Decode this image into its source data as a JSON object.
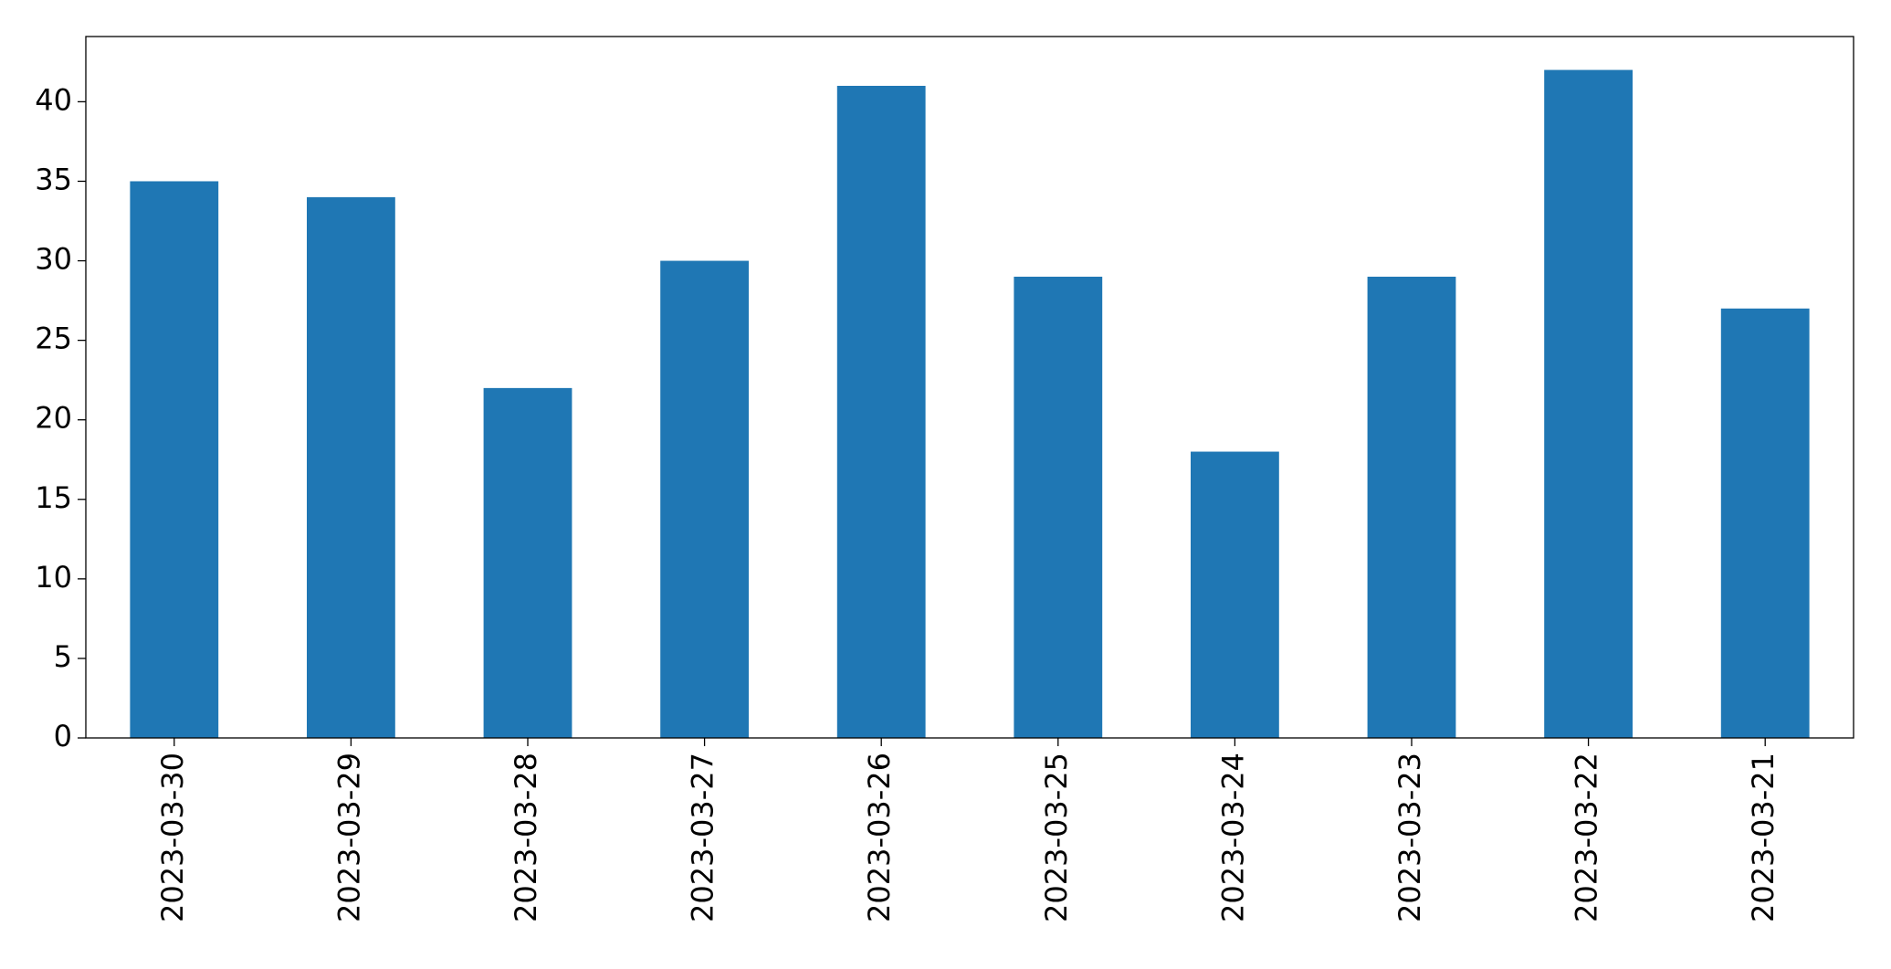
{
  "chart_data": {
    "type": "bar",
    "categories": [
      "2023-03-30",
      "2023-03-29",
      "2023-03-28",
      "2023-03-27",
      "2023-03-26",
      "2023-03-25",
      "2023-03-24",
      "2023-03-23",
      "2023-03-22",
      "2023-03-21"
    ],
    "values": [
      35,
      34,
      22,
      30,
      41,
      29,
      18,
      29,
      42,
      27
    ],
    "color": "#1f77b4",
    "ylim": [
      0,
      44.1
    ],
    "yticks": [
      0,
      5,
      10,
      15,
      20,
      25,
      30,
      35,
      40
    ],
    "grid": false
  }
}
